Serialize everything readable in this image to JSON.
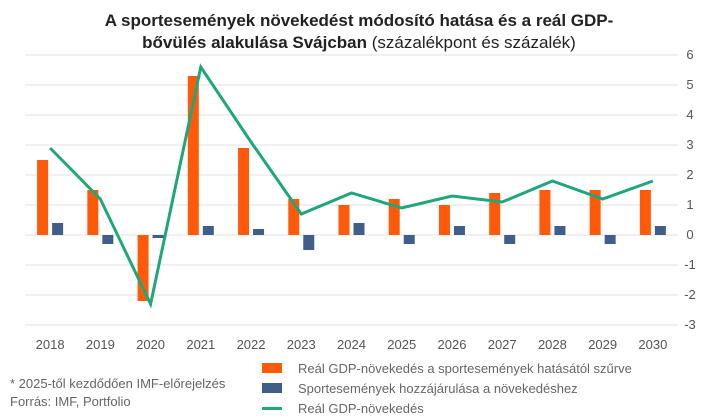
{
  "title_bold_1": "A sportesemények növekedést módosító hatása és a reál GDP-",
  "title_bold_2": "bővülés alakulása Svájcban",
  "title_normal": " (százalékpont és százalék)",
  "notes": {
    "forecast": "* 2025-től kezdődően IMF-előrejelzés",
    "source": "Forrás: IMF, Portfolio"
  },
  "colors": {
    "gdp_filtered": "#FF5A0A",
    "sport": "#3F5F8A",
    "gdp_line": "#1FA67A",
    "grid": "#E0E0E0"
  },
  "chart_data": {
    "type": "bar+line",
    "categories": [
      "2018",
      "2019",
      "2020",
      "2021",
      "2022",
      "2023",
      "2024",
      "2025",
      "2026",
      "2027",
      "2028",
      "2029",
      "2030"
    ],
    "y_ticks": [
      "6",
      "5",
      "4",
      "3",
      "2",
      "1",
      "0",
      "-1",
      "-2",
      "-3"
    ],
    "ylim": [
      -3,
      6
    ],
    "y_axis_position": "right",
    "grid": true,
    "legend_position": "bottom",
    "series": [
      {
        "name": "Reál GDP-növekedés a sportesemények hatásától szűrve",
        "type": "bar",
        "values": [
          2.5,
          1.5,
          -2.2,
          5.3,
          2.9,
          1.2,
          1.0,
          1.2,
          1.0,
          1.4,
          1.5,
          1.5,
          1.5
        ]
      },
      {
        "name": "Sportesemények hozzájárulása a növekedéshez",
        "type": "bar",
        "values": [
          0.4,
          -0.3,
          -0.1,
          0.3,
          0.2,
          -0.5,
          0.4,
          -0.3,
          0.3,
          -0.3,
          0.3,
          -0.3,
          0.3
        ]
      },
      {
        "name": "Reál GDP-növekedés",
        "type": "line",
        "values": [
          2.9,
          1.2,
          -2.3,
          5.6,
          3.1,
          0.7,
          1.4,
          0.9,
          1.3,
          1.1,
          1.8,
          1.2,
          1.8
        ]
      }
    ]
  }
}
